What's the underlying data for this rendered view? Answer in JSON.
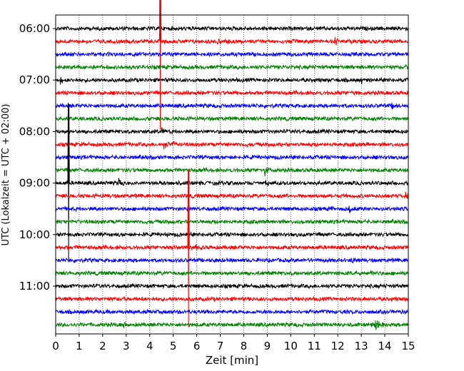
{
  "chart_data": {
    "type": "line",
    "title": "",
    "xlabel": "Zeit  [min]",
    "ylabel": "UTC (Lokalzeit = UTC + 02:00)",
    "xlim": [
      0,
      15
    ],
    "x_ticks": [
      "0",
      "1",
      "2",
      "3",
      "4",
      "5",
      "6",
      "7",
      "8",
      "9",
      "10",
      "11",
      "12",
      "13",
      "14",
      "15"
    ],
    "y_tick_labels": [
      "06:00",
      "07:00",
      "08:00",
      "09:00",
      "10:00",
      "11:00"
    ],
    "grid": "vertical dotted at each minute",
    "trace_start_times": [
      "06:00",
      "06:15",
      "06:30",
      "06:45",
      "07:00",
      "07:15",
      "07:30",
      "07:45",
      "08:00",
      "08:15",
      "08:30",
      "08:45",
      "09:00",
      "09:15",
      "09:30",
      "09:45",
      "10:00",
      "10:15",
      "10:30",
      "10:45",
      "11:00",
      "11:15",
      "11:30",
      "11:45"
    ],
    "trace_colors_cycle": [
      "#000000",
      "#ff0000",
      "#0000ff",
      "#008000"
    ],
    "events": [
      {
        "trace": "06:15",
        "minute": 6.9,
        "amplitude": 0.5
      },
      {
        "trace": "06:15",
        "minute": 11.9,
        "amplitude": 0.7
      },
      {
        "trace": "06:15",
        "minute": 4.45,
        "amplitude": 18
      },
      {
        "trace": "06:45",
        "minute": 14.9,
        "amplitude": 0.6
      },
      {
        "trace": "07:00",
        "minute": 0.2,
        "amplitude": 0.7
      },
      {
        "trace": "07:00",
        "minute": 13.0,
        "amplitude": 0.5
      },
      {
        "trace": "07:15",
        "minute": 12.6,
        "amplitude": 0.5
      },
      {
        "trace": "07:30",
        "minute": 14.3,
        "amplitude": 0.4
      },
      {
        "trace": "08:00",
        "minute": 4.5,
        "amplitude": 0.7
      },
      {
        "trace": "08:15",
        "minute": 4.6,
        "amplitude": 0.9
      },
      {
        "trace": "08:15",
        "minute": 4.95,
        "amplitude": 0.6
      },
      {
        "trace": "08:45",
        "minute": 8.9,
        "amplitude": 1.2
      },
      {
        "trace": "09:00",
        "minute": 0.55,
        "amplitude": 16
      },
      {
        "trace": "09:00",
        "minute": 2.7,
        "amplitude": 0.8
      },
      {
        "trace": "09:00",
        "minute": 8.95,
        "amplitude": 0.5
      },
      {
        "trace": "09:15",
        "minute": 11.4,
        "amplitude": 0.5
      },
      {
        "trace": "09:15",
        "minute": 14.9,
        "amplitude": 0.6
      },
      {
        "trace": "09:30",
        "minute": 5.6,
        "amplitude": 0.7
      },
      {
        "trace": "09:30",
        "minute": 11.7,
        "amplitude": 0.5
      },
      {
        "trace": "09:30",
        "minute": 12.5,
        "amplitude": 0.5
      },
      {
        "trace": "10:15",
        "minute": 5.65,
        "amplitude": 16
      },
      {
        "trace": "10:15",
        "minute": 5.95,
        "amplitude": 0.7
      },
      {
        "trace": "10:30",
        "minute": 12.6,
        "amplitude": 0.5
      },
      {
        "trace": "10:45",
        "minute": 13.4,
        "amplitude": 0.4
      },
      {
        "trace": "11:45",
        "minute": 2.9,
        "amplitude": 0.5
      },
      {
        "trace": "11:45",
        "minute": 12.0,
        "amplitude": 0.4
      },
      {
        "trace": "11:45",
        "minute": 13.6,
        "amplitude": 1.5
      }
    ]
  }
}
